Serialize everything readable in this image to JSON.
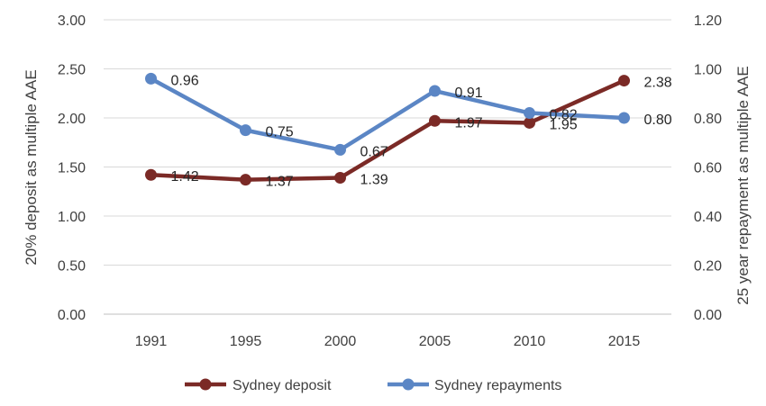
{
  "chart_data": {
    "type": "line",
    "categories": [
      "1991",
      "1995",
      "2000",
      "2005",
      "2010",
      "2015"
    ],
    "series": [
      {
        "name": "Sydney deposit",
        "axis": "left",
        "color": "#7b2a26",
        "values": [
          1.42,
          1.37,
          1.39,
          1.97,
          1.95,
          2.38
        ],
        "labels": [
          "1.42",
          "1.37",
          "1.39",
          "1.97",
          "1.95",
          "2.38"
        ]
      },
      {
        "name": "Sydney repayments",
        "axis": "right",
        "color": "#5b86c5",
        "values": [
          0.96,
          0.75,
          0.67,
          0.91,
          0.82,
          0.8
        ],
        "labels": [
          "0.96",
          "0.75",
          "0.67",
          "0.91",
          "0.82",
          "0.80"
        ]
      }
    ],
    "ylabel": "20% deposit as multiple AAE",
    "y2label": "25 year repayment as multiple AAE",
    "ylim": [
      0,
      3
    ],
    "y2lim": [
      0,
      1.2
    ],
    "yticks": [
      "0.00",
      "0.50",
      "1.00",
      "1.50",
      "2.00",
      "2.50",
      "3.00"
    ],
    "y2ticks": [
      "0.00",
      "0.20",
      "0.40",
      "0.60",
      "0.80",
      "1.00",
      "1.20"
    ],
    "grid": true,
    "legend_position": "bottom"
  }
}
